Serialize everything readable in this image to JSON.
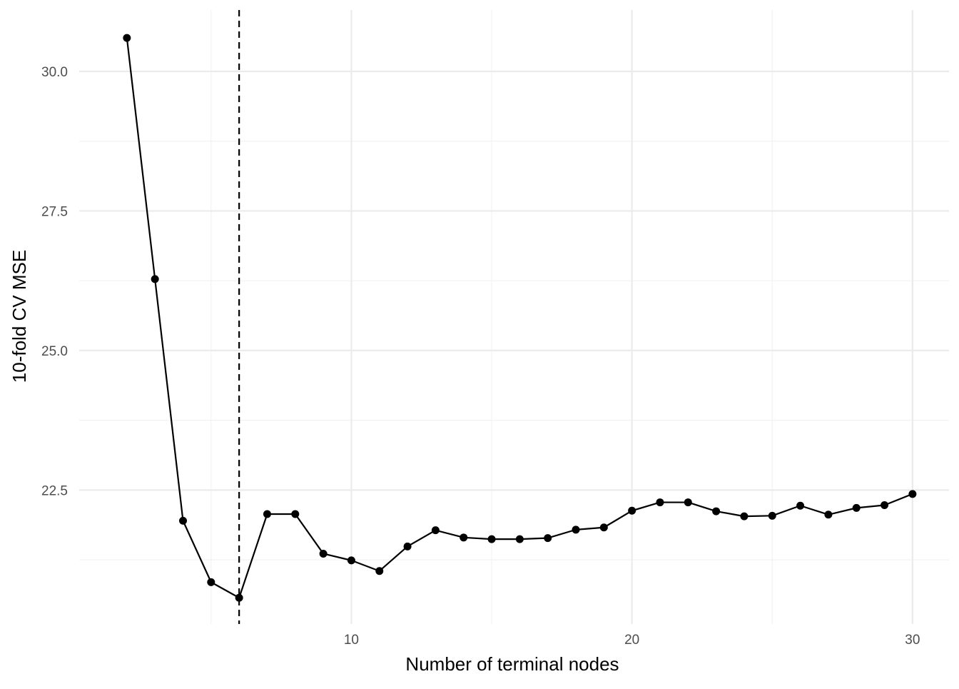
{
  "chart_data": {
    "type": "line",
    "title": "",
    "xlabel": "Number of terminal nodes",
    "ylabel": "10-fold CV MSE",
    "x": [
      2,
      3,
      4,
      5,
      6,
      7,
      8,
      9,
      10,
      11,
      12,
      13,
      14,
      15,
      16,
      17,
      18,
      19,
      20,
      21,
      22,
      23,
      24,
      25,
      26,
      27,
      28,
      29,
      30
    ],
    "series": [
      {
        "values": [
          30.6,
          26.28,
          21.95,
          20.85,
          20.57,
          22.07,
          22.07,
          21.36,
          21.24,
          21.05,
          21.49,
          21.78,
          21.65,
          21.62,
          21.62,
          21.64,
          21.79,
          21.83,
          22.13,
          22.28,
          22.28,
          22.12,
          22.03,
          22.04,
          22.22,
          22.06,
          22.18,
          22.23,
          22.43
        ]
      }
    ],
    "xlim": [
      0.3,
      31.3
    ],
    "ylim": [
      20.1,
      31.1
    ],
    "x_ticks": [
      10,
      20,
      30
    ],
    "x_tick_labels": [
      "10",
      "20",
      "30"
    ],
    "x_minor_ticks": [
      5,
      15,
      25
    ],
    "y_ticks": [
      22.5,
      25.0,
      27.5,
      30.0
    ],
    "y_tick_labels": [
      "22.5",
      "25.0",
      "27.5",
      "30.0"
    ],
    "y_minor_ticks": [
      21.25,
      23.75,
      26.25,
      28.75
    ],
    "reference_line": {
      "orientation": "vertical",
      "x": 6,
      "style": "dashed"
    },
    "grid": true,
    "legend": "none",
    "colors": {
      "line": "#000000",
      "points": "#000000",
      "grid_major": "#ebebeb",
      "grid_minor": "#f2f2f2",
      "tick_text": "#4d4d4d"
    }
  }
}
